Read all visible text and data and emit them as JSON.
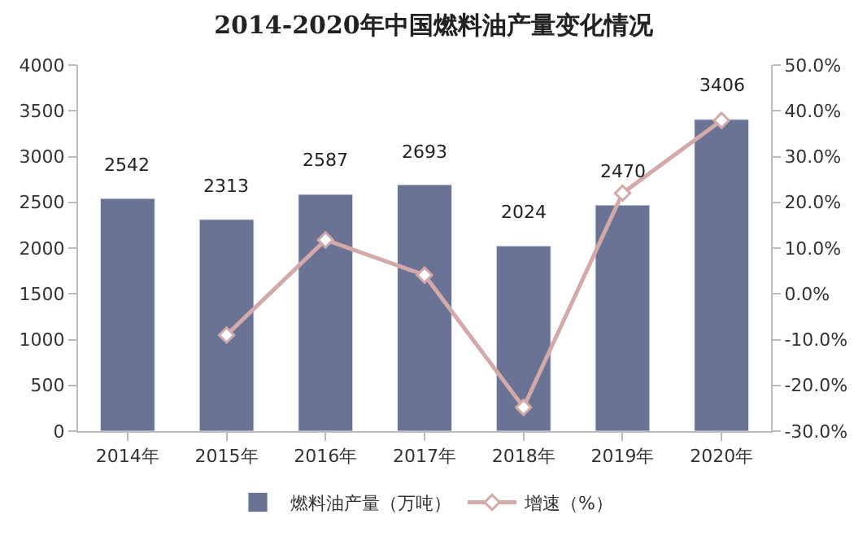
{
  "chart_data": {
    "type": "bar",
    "title": "2014-2020年中国燃料油产量变化情况",
    "categories": [
      "2014年",
      "2015年",
      "2016年",
      "2017年",
      "2018年",
      "2019年",
      "2020年"
    ],
    "series": [
      {
        "name": "燃料油产量（万吨）",
        "color": "#6b7394",
        "values": [
          2542,
          2313,
          2587,
          2693,
          2024,
          2470,
          3406
        ],
        "value_labels": [
          "2542",
          "2313",
          "2587",
          "2693",
          "2024",
          "2470",
          "3406"
        ]
      },
      {
        "name": "增速（%）",
        "type": "line",
        "axis": "y2",
        "color": "#d4a9a9",
        "marker": "diamond",
        "values": [
          null,
          -9.0,
          11.8,
          4.1,
          -24.8,
          22.0,
          37.9
        ]
      }
    ],
    "ylim": [
      0,
      4000
    ],
    "yticks": [
      0,
      500,
      1000,
      1500,
      2000,
      2500,
      3000,
      3500,
      4000
    ],
    "y2lim": [
      -30,
      50
    ],
    "y2ticks": [
      {
        "value": -30,
        "label": "-30.0%"
      },
      {
        "value": -20,
        "label": "-20.0%"
      },
      {
        "value": -10,
        "label": "-10.0%"
      },
      {
        "value": 0,
        "label": "0.0%"
      },
      {
        "value": 10,
        "label": "10.0%"
      },
      {
        "value": 20,
        "label": "20.0%"
      },
      {
        "value": 30,
        "label": "30.0%"
      },
      {
        "value": 40,
        "label": "40.0%"
      },
      {
        "value": 50,
        "label": "50.0%"
      }
    ],
    "legend": "bottom"
  }
}
